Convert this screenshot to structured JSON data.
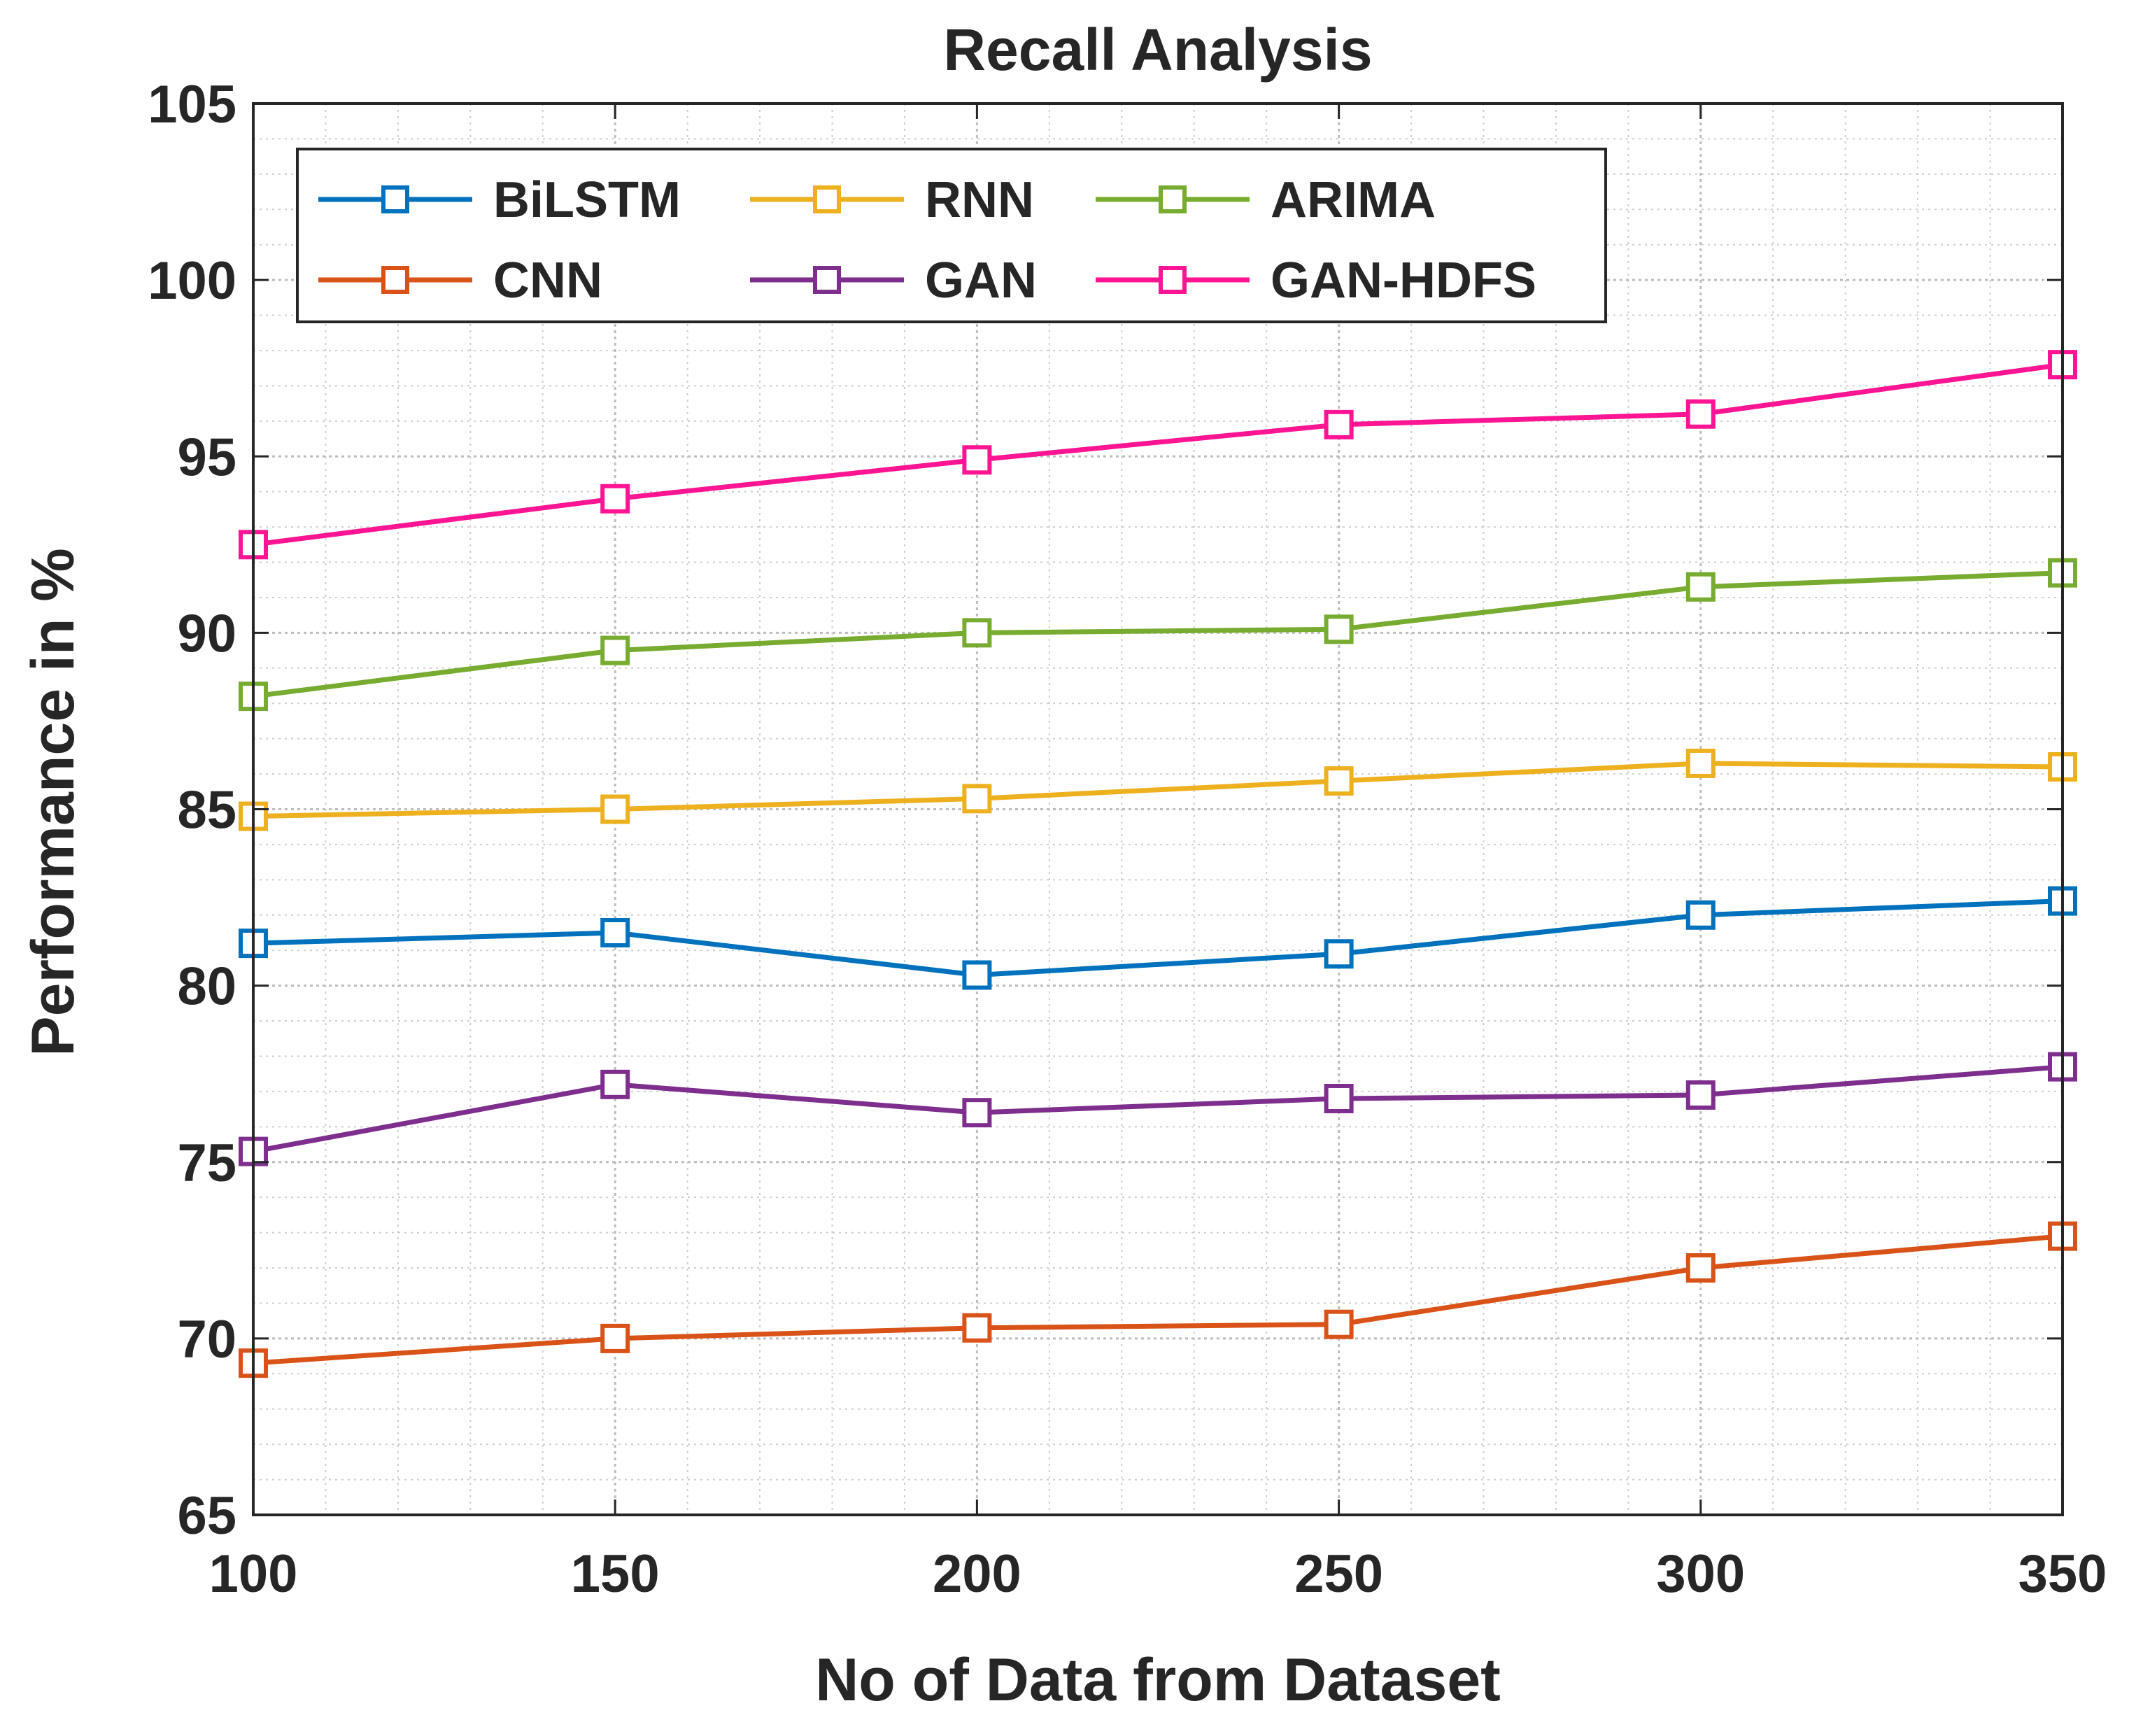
{
  "chart_data": {
    "type": "line",
    "title": "Recall Analysis",
    "xlabel": "No of Data from Dataset",
    "ylabel": "Performance in %",
    "x": [
      100,
      150,
      200,
      250,
      300,
      350
    ],
    "xlim": [
      100,
      350
    ],
    "ylim": [
      65,
      105
    ],
    "xticks": [
      100,
      150,
      200,
      250,
      300,
      350
    ],
    "yticks": [
      65,
      70,
      75,
      80,
      85,
      90,
      95,
      100,
      105
    ],
    "grid": true,
    "minor_grid": true,
    "legend_position": "top-left",
    "legend_columns": 3,
    "marker": "square",
    "series": [
      {
        "name": "BiLSTM",
        "color": "#0072BD",
        "values": [
          81.2,
          81.5,
          80.3,
          80.9,
          82.0,
          82.4
        ]
      },
      {
        "name": "CNN",
        "color": "#D95319",
        "values": [
          69.3,
          70.0,
          70.3,
          70.4,
          72.0,
          72.9
        ]
      },
      {
        "name": "RNN",
        "color": "#EDB120",
        "values": [
          84.8,
          85.0,
          85.3,
          85.8,
          86.3,
          86.2
        ]
      },
      {
        "name": "GAN",
        "color": "#7E2F8E",
        "values": [
          75.3,
          77.2,
          76.4,
          76.8,
          76.9,
          77.7
        ]
      },
      {
        "name": "ARIMA",
        "color": "#77AC30",
        "values": [
          88.2,
          89.5,
          90.0,
          90.1,
          91.3,
          91.7
        ]
      },
      {
        "name": "GAN-HDFS",
        "color": "#FF1493",
        "values": [
          92.5,
          93.8,
          94.9,
          95.9,
          96.2,
          97.6
        ]
      }
    ]
  }
}
